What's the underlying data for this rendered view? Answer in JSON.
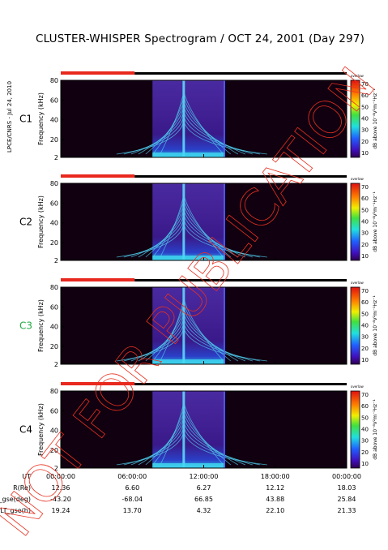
{
  "title": "CLUSTER-WHISPER Spectrogram / OCT 24, 2001 (Day 297)",
  "side_text": "LPCE/CNRS - Jul 24, 2010",
  "watermark": "NOT FOR PUBLICATION",
  "colors": {
    "orbit_bar": "#e8281e",
    "orbit_line": "#000000",
    "background_panel": "#100010",
    "spectrogram_base": "#3a1a8a"
  },
  "colorbar": {
    "ticks": [
      "70",
      "60",
      "50",
      "40",
      "30",
      "20",
      "10"
    ],
    "label": "dB above 10⁻⁸V²m⁻¹Hz⁻¹",
    "corner_text": "overlaw"
  },
  "chart_data": [
    {
      "type": "heatmap",
      "panel": "C1",
      "label_color": "#000000",
      "ylabel": "Frequency (kHz)",
      "yticks": [
        "80",
        "60",
        "40",
        "20",
        "2"
      ],
      "ylim": [
        2,
        80
      ],
      "xlim_hours": [
        0,
        24
      ],
      "data_window_hours": [
        7.7,
        13.8
      ],
      "colorbar_range_db": [
        10,
        70
      ]
    },
    {
      "type": "heatmap",
      "panel": "C2",
      "label_color": "#000000",
      "ylabel": "Frequency (kHz)",
      "yticks": [
        "80",
        "60",
        "40",
        "20",
        "2"
      ],
      "ylim": [
        2,
        80
      ],
      "xlim_hours": [
        0,
        24
      ],
      "data_window_hours": [
        7.7,
        13.8
      ],
      "colorbar_range_db": [
        10,
        70
      ]
    },
    {
      "type": "heatmap",
      "panel": "C3",
      "label_color": "#22aa44",
      "ylabel": "Frequency (kHz)",
      "yticks": [
        "80",
        "60",
        "40",
        "20",
        "2"
      ],
      "ylim": [
        2,
        80
      ],
      "xlim_hours": [
        0,
        24
      ],
      "data_window_hours": [
        7.7,
        13.8
      ],
      "colorbar_range_db": [
        10,
        70
      ]
    },
    {
      "type": "heatmap",
      "panel": "C4",
      "label_color": "#000000",
      "ylabel": "Frequency (kHz)",
      "yticks": [
        "80",
        "60",
        "40",
        "20",
        "2"
      ],
      "ylim": [
        2,
        80
      ],
      "xlim_hours": [
        0,
        24
      ],
      "data_window_hours": [
        7.7,
        13.8
      ],
      "colorbar_range_db": [
        10,
        70
      ]
    }
  ],
  "ephemeris": {
    "rows": [
      {
        "label": "UT",
        "values": [
          "00:00:00",
          "06:00:00",
          "12:00:00",
          "18:00:00",
          "00:00:00"
        ]
      },
      {
        "label": "R(Re)",
        "values": [
          "12.36",
          "6.60",
          "6.27",
          "12.12",
          "18.03"
        ]
      },
      {
        "label": "Lat_gse(deg)",
        "values": [
          "-43.20",
          "-68.04",
          "66.85",
          "43.88",
          "25.84"
        ]
      },
      {
        "label": "LT_gse(h)",
        "values": [
          "19.24",
          "13.70",
          "4.32",
          "22.10",
          "21.33"
        ]
      }
    ]
  }
}
